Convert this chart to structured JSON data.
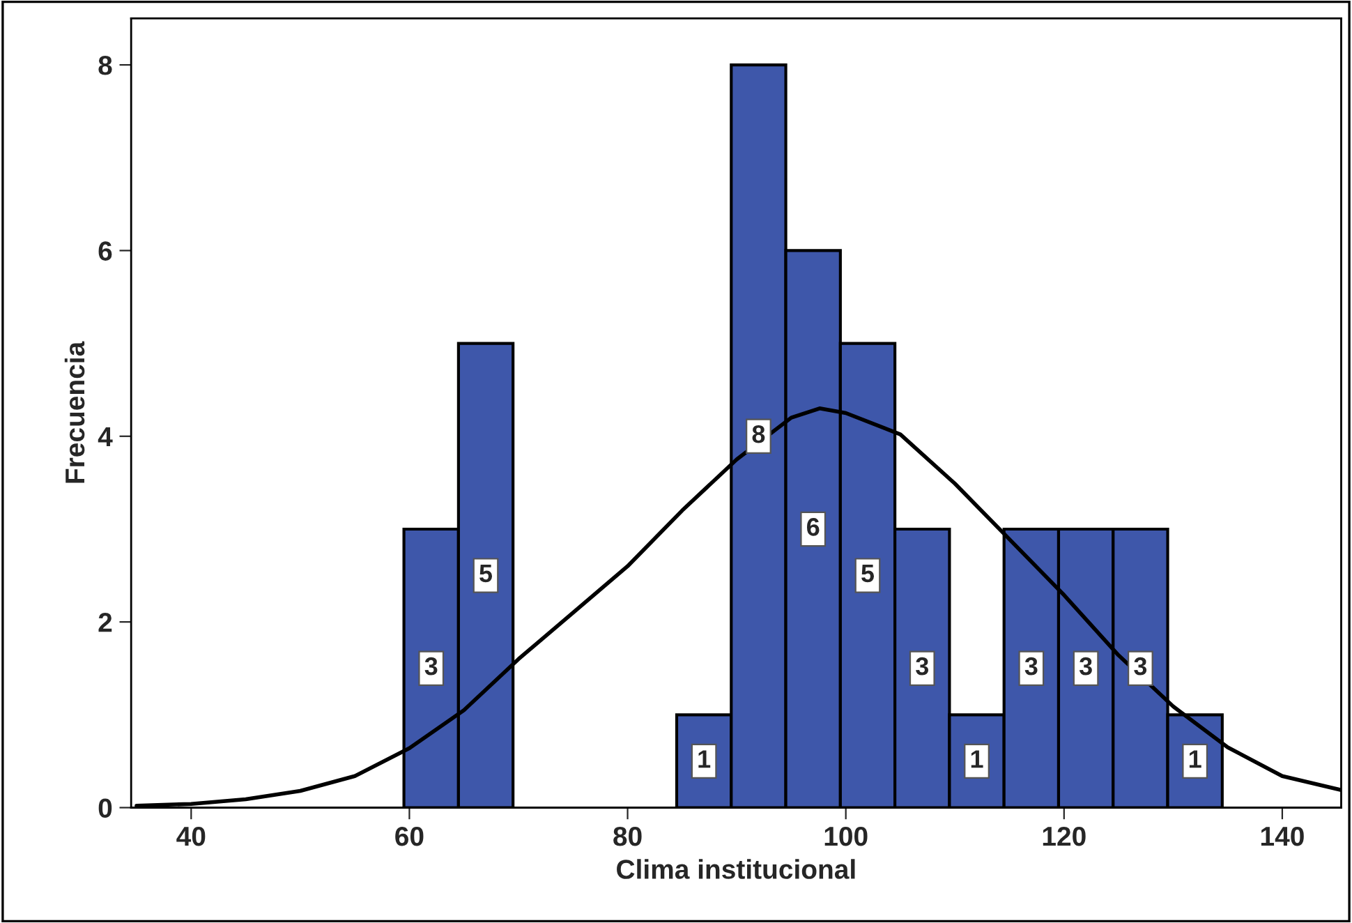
{
  "chart_data": {
    "type": "histogram",
    "xlabel": "Clima institucional",
    "ylabel": "Frecuencia",
    "bins": [
      59.5,
      64.5,
      69.5,
      74.5,
      79.5,
      84.5,
      89.5,
      94.5,
      99.5,
      104.5,
      109.5,
      114.5,
      119.5,
      124.5,
      129.5,
      134.5
    ],
    "series": [
      {
        "color": "#3e57aa",
        "values": [
          3,
          5,
          0,
          0,
          0,
          1,
          8,
          6,
          5,
          3,
          1,
          3,
          3,
          3,
          1
        ],
        "value_labels": [
          "3",
          "5",
          null,
          null,
          null,
          "1",
          "8",
          "6",
          "5",
          "3",
          "1",
          "3",
          "3",
          "3",
          "1"
        ]
      },
      {
        "type": "line",
        "color": "#000000",
        "x": [
          35,
          40,
          45,
          50,
          55,
          60,
          65,
          70,
          75,
          80,
          85,
          90,
          95,
          97.6,
          100,
          105,
          110,
          115,
          120,
          125,
          130,
          135,
          140,
          145.4
        ],
        "values": [
          0.02,
          0.04,
          0.09,
          0.18,
          0.34,
          0.64,
          1.05,
          1.6,
          2.1,
          2.6,
          3.2,
          3.75,
          4.2,
          4.3,
          4.25,
          4.02,
          3.49,
          2.89,
          2.29,
          1.64,
          1.09,
          0.65,
          0.34,
          0.19
        ]
      }
    ],
    "xlim": [
      34.5,
      145.4
    ],
    "ylim": [
      0,
      8.5
    ],
    "xticks": [
      40,
      60,
      80,
      100,
      120,
      140
    ],
    "yticks": [
      0,
      2,
      4,
      6,
      8
    ],
    "grid": false
  }
}
